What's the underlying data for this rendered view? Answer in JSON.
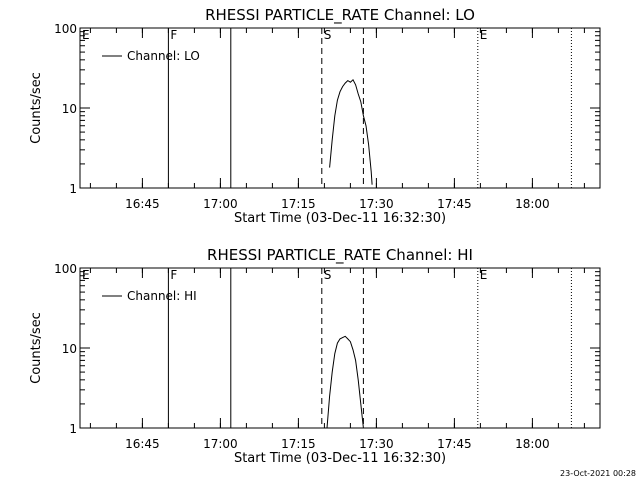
{
  "footer": {
    "timestamp": "23-Oct-2021 00:28"
  },
  "chart_data": [
    {
      "type": "line",
      "title": "RHESSI PARTICLE_RATE Channel: LO",
      "xlabel": "Start Time (03-Dec-11 16:32:30)",
      "ylabel": "Counts/sec",
      "y_scale": "log",
      "ylim": [
        1,
        100
      ],
      "y_ticks": [
        {
          "value": 1,
          "label": "1"
        },
        {
          "value": 10,
          "label": "10"
        },
        {
          "value": 100,
          "label": "100"
        }
      ],
      "xlim": [
        "16:33",
        "18:13"
      ],
      "x_ticks": [
        "16:45",
        "17:00",
        "17:15",
        "17:30",
        "17:45",
        "18:00"
      ],
      "grid": false,
      "legend": {
        "position": "top-left",
        "entries": [
          "Channel: LO"
        ]
      },
      "series": [
        {
          "name": "Channel: LO",
          "x": [
            "17:21:00",
            "17:21:30",
            "17:22:00",
            "17:22:30",
            "17:23:00",
            "17:23:30",
            "17:24:00",
            "17:24:30",
            "17:25:00",
            "17:25:30",
            "17:26:00",
            "17:26:30",
            "17:27:00",
            "17:27:30",
            "17:28:00",
            "17:28:30",
            "17:29:00",
            "17:29:10"
          ],
          "y": [
            1.8,
            4.0,
            8.0,
            12.5,
            16.0,
            18.5,
            20.5,
            22.0,
            21.0,
            22.5,
            19.5,
            15.0,
            12.0,
            8.0,
            6.0,
            3.5,
            1.6,
            1.1
          ]
        }
      ],
      "markers": [
        {
          "label": "E",
          "time": "16:33:00",
          "style": "dotted"
        },
        {
          "label": "F",
          "time": "16:50:00",
          "style": "solid"
        },
        {
          "label": "",
          "time": "17:02:00",
          "style": "solid"
        },
        {
          "label": "S",
          "time": "17:19:30",
          "style": "dashed"
        },
        {
          "label": "",
          "time": "17:27:30",
          "style": "dashed"
        },
        {
          "label": "E",
          "time": "17:49:30",
          "style": "dotted"
        },
        {
          "label": "",
          "time": "18:07:30",
          "style": "dotted"
        }
      ]
    },
    {
      "type": "line",
      "title": "RHESSI PARTICLE_RATE Channel: HI",
      "xlabel": "Start Time (03-Dec-11 16:32:30)",
      "ylabel": "Counts/sec",
      "y_scale": "log",
      "ylim": [
        1,
        100
      ],
      "y_ticks": [
        {
          "value": 1,
          "label": "1"
        },
        {
          "value": 10,
          "label": "10"
        },
        {
          "value": 100,
          "label": "100"
        }
      ],
      "xlim": [
        "16:33",
        "18:13"
      ],
      "x_ticks": [
        "16:45",
        "17:00",
        "17:15",
        "17:30",
        "17:45",
        "18:00"
      ],
      "grid": false,
      "legend": {
        "position": "top-left",
        "entries": [
          "Channel: HI"
        ]
      },
      "series": [
        {
          "name": "Channel: HI",
          "x": [
            "17:20:30",
            "17:21:00",
            "17:21:30",
            "17:22:00",
            "17:22:30",
            "17:23:00",
            "17:23:30",
            "17:24:00",
            "17:24:30",
            "17:25:00",
            "17:25:30",
            "17:26:00",
            "17:26:30",
            "17:27:00",
            "17:27:30"
          ],
          "y": [
            1.0,
            2.5,
            5.0,
            8.5,
            11.5,
            13.0,
            13.5,
            14.0,
            13.0,
            12.0,
            9.5,
            7.0,
            4.0,
            2.0,
            1.0
          ]
        }
      ],
      "markers": [
        {
          "label": "E",
          "time": "16:33:00",
          "style": "dotted"
        },
        {
          "label": "F",
          "time": "16:50:00",
          "style": "solid"
        },
        {
          "label": "",
          "time": "17:02:00",
          "style": "solid"
        },
        {
          "label": "S",
          "time": "17:19:30",
          "style": "dashed"
        },
        {
          "label": "",
          "time": "17:27:30",
          "style": "dashed"
        },
        {
          "label": "E",
          "time": "17:49:30",
          "style": "dotted"
        },
        {
          "label": "",
          "time": "18:07:30",
          "style": "dotted"
        }
      ]
    }
  ]
}
